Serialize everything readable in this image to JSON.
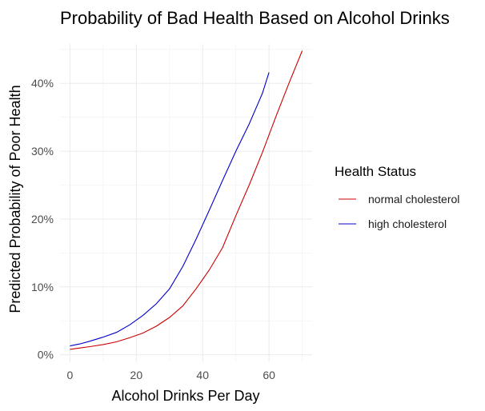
{
  "chart_data": {
    "type": "line",
    "title": "Probability of Bad Health Based on Alcohol Drinks",
    "xlabel": "Alcohol Drinks Per Day",
    "ylabel": "Predicted Probability of Poor Health",
    "xlim": [
      -3,
      73
    ],
    "ylim": [
      -0.011,
      0.458
    ],
    "x_ticks": [
      0,
      20,
      40,
      60
    ],
    "x_tick_labels": [
      "0",
      "20",
      "40",
      "60"
    ],
    "y_ticks": [
      0,
      0.1,
      0.2,
      0.3,
      0.4
    ],
    "y_tick_labels": [
      "0%",
      "10%",
      "20%",
      "30%",
      "40%"
    ],
    "grid": true,
    "legend": {
      "title": "Health Status",
      "position": "right"
    },
    "series": [
      {
        "name": "normal cholesterol",
        "color": "#cc0000",
        "x": [
          0,
          3,
          6,
          10,
          14,
          18,
          22,
          26,
          30,
          34,
          38,
          42,
          46,
          50,
          54,
          58,
          62,
          66,
          70
        ],
        "y": [
          0.008,
          0.01,
          0.012,
          0.015,
          0.019,
          0.025,
          0.032,
          0.042,
          0.055,
          0.072,
          0.097,
          0.125,
          0.158,
          0.205,
          0.25,
          0.298,
          0.35,
          0.4,
          0.448
        ]
      },
      {
        "name": "high cholesterol",
        "color": "#0000cc",
        "x": [
          0,
          3,
          6,
          10,
          14,
          18,
          22,
          26,
          30,
          34,
          38,
          42,
          46,
          50,
          54,
          58,
          60
        ],
        "y": [
          0.013,
          0.016,
          0.02,
          0.026,
          0.033,
          0.044,
          0.058,
          0.075,
          0.097,
          0.13,
          0.17,
          0.213,
          0.257,
          0.3,
          0.34,
          0.385,
          0.416
        ]
      }
    ]
  }
}
